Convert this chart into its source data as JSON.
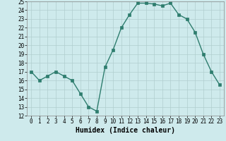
{
  "xlabel": "Humidex (Indice chaleur)",
  "x": [
    0,
    1,
    2,
    3,
    4,
    5,
    6,
    7,
    8,
    9,
    10,
    11,
    12,
    13,
    14,
    15,
    16,
    17,
    18,
    19,
    20,
    21,
    22,
    23
  ],
  "y": [
    17,
    16,
    16.5,
    17,
    16.5,
    16,
    14.5,
    13,
    12.5,
    17.5,
    19.5,
    22,
    23.5,
    24.8,
    24.8,
    24.7,
    24.5,
    24.8,
    23.5,
    23,
    21.5,
    19,
    17,
    15.5
  ],
  "line_color": "#2e7d6e",
  "bg_color": "#ceeaec",
  "grid_color": "#b0cece",
  "markersize": 2.5,
  "linewidth": 1.0,
  "ylim": [
    12,
    25
  ],
  "xlim_min": -0.5,
  "xlim_max": 23.5,
  "yticks": [
    12,
    13,
    14,
    15,
    16,
    17,
    18,
    19,
    20,
    21,
    22,
    23,
    24,
    25
  ],
  "xticks": [
    0,
    1,
    2,
    3,
    4,
    5,
    6,
    7,
    8,
    9,
    10,
    11,
    12,
    13,
    14,
    15,
    16,
    17,
    18,
    19,
    20,
    21,
    22,
    23
  ],
  "tick_fontsize": 5.5,
  "label_fontsize": 7
}
